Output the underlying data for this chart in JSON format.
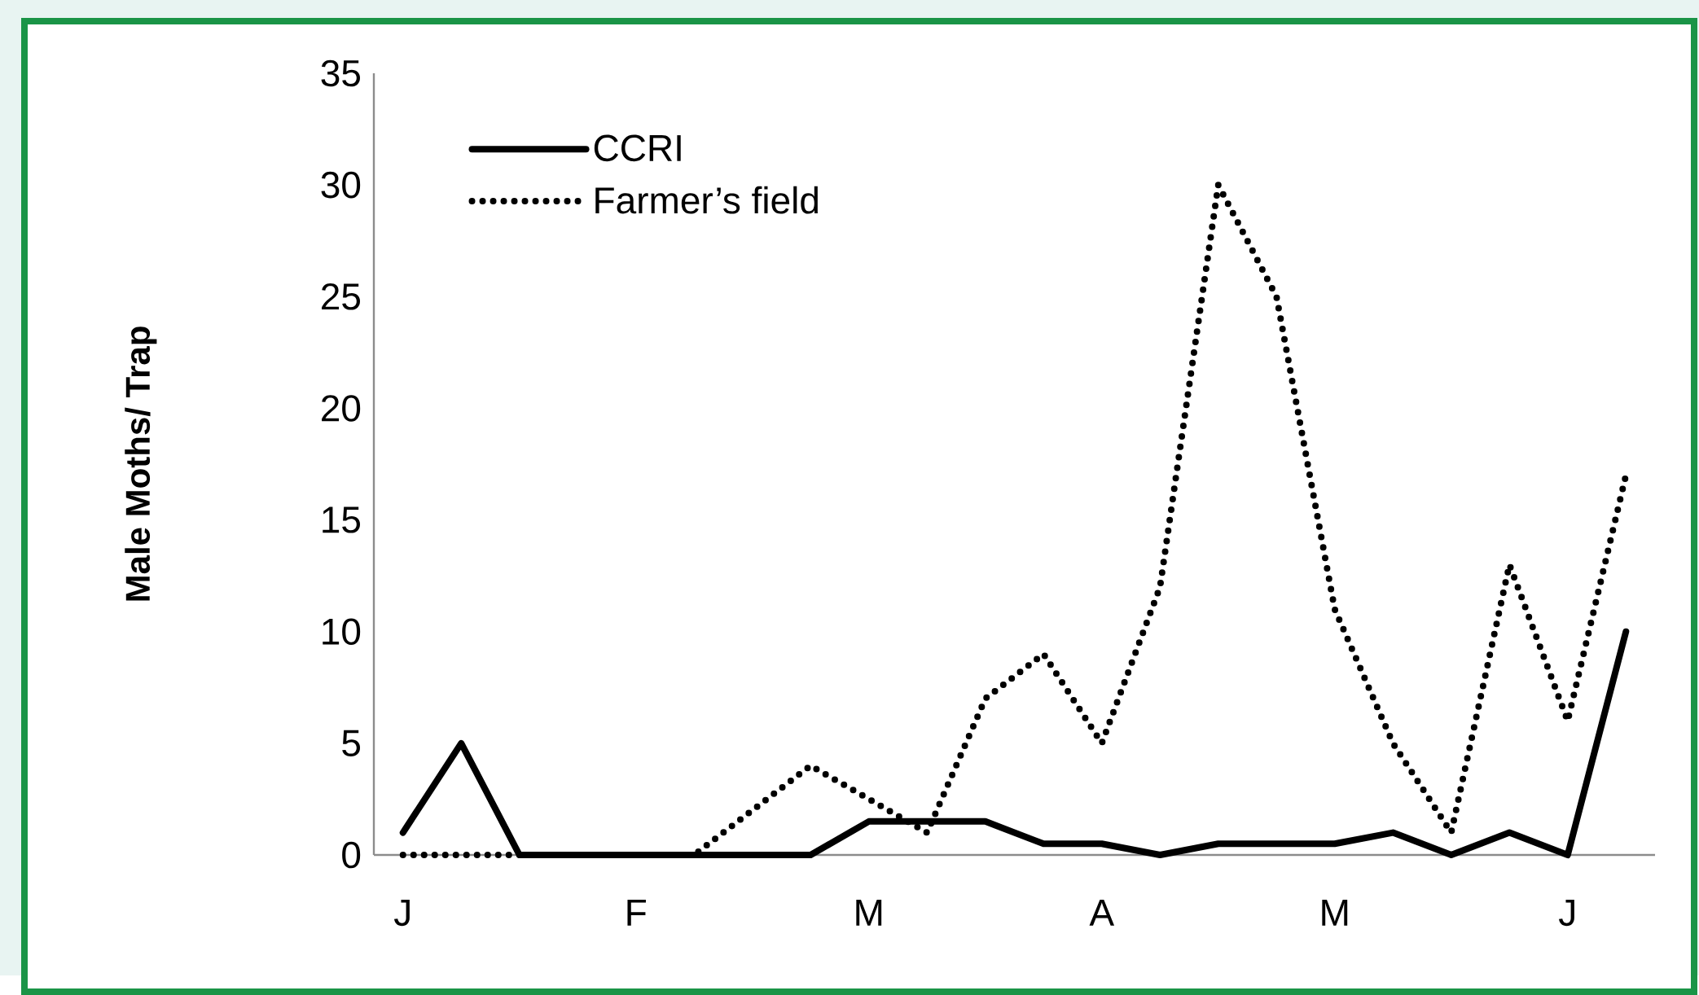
{
  "chart_data": {
    "type": "line",
    "ylabel": "Male Moths/ Trap",
    "categories": [
      "J",
      null,
      null,
      null,
      "F",
      null,
      null,
      null,
      "M",
      null,
      null,
      null,
      "A",
      null,
      null,
      null,
      "M",
      null,
      null,
      null,
      "J",
      null
    ],
    "series": [
      {
        "name": "CCRI",
        "color": "#000000",
        "line_style": "solid",
        "values": [
          1,
          5,
          0,
          0,
          0,
          0,
          0,
          0,
          1.5,
          1.5,
          1.5,
          0.5,
          0.5,
          0,
          0.5,
          0.5,
          0.5,
          1,
          0,
          1,
          0,
          10
        ]
      },
      {
        "name": "Farmer’s field",
        "color": "#000000",
        "line_style": "dotted",
        "values": [
          0,
          0,
          0,
          0,
          0,
          0,
          2,
          4,
          2.5,
          1,
          7,
          9,
          5,
          12,
          30,
          25,
          11,
          5,
          1,
          13,
          6,
          17
        ]
      }
    ],
    "ylim": [
      0,
      35
    ],
    "yticks": [
      0,
      5,
      10,
      15,
      20,
      25,
      30,
      35
    ],
    "grid": false,
    "legend": "top left",
    "marker": "none"
  }
}
